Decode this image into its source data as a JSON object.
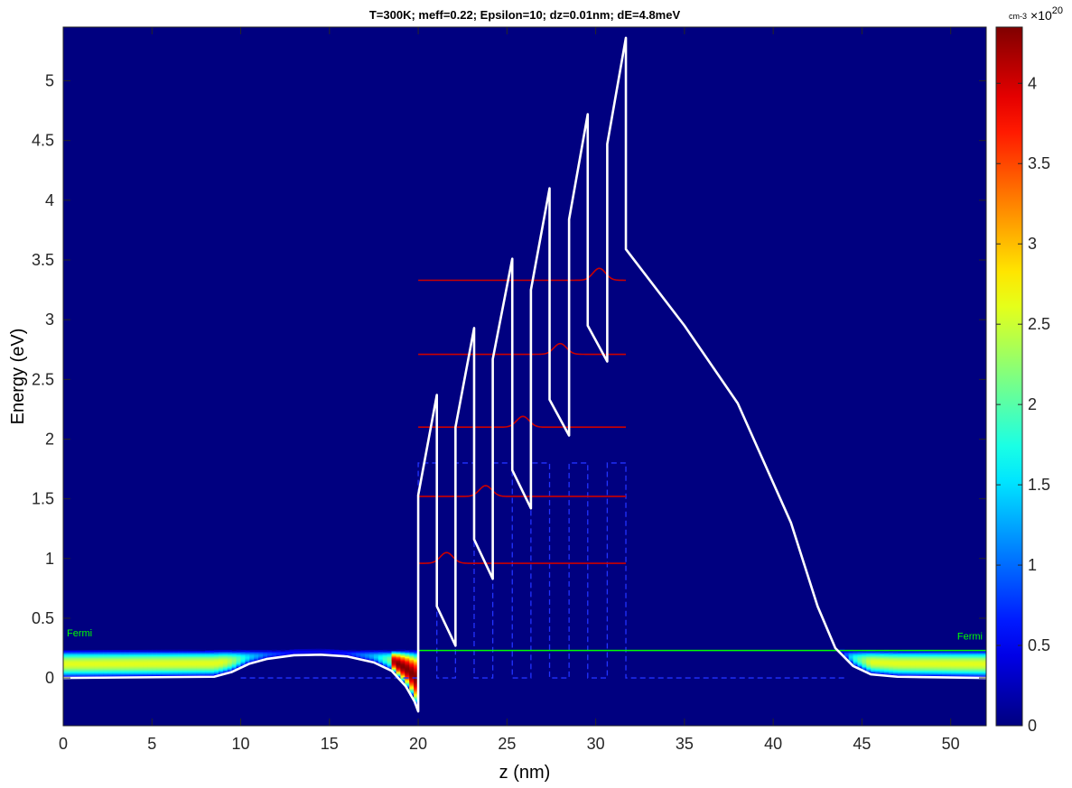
{
  "chart_data": {
    "type": "heatmap",
    "title": "T=300K; meff=0.22; Epsilon=10; dz=0.01nm; dE=4.8meV",
    "xlabel": "z (nm)",
    "ylabel": "Energy (eV)",
    "xlim": [
      0,
      52
    ],
    "ylim": [
      -0.4,
      5.45
    ],
    "xticks": [
      0,
      5,
      10,
      15,
      20,
      25,
      30,
      35,
      40,
      45,
      50
    ],
    "yticks": [
      0,
      0.5,
      1,
      1.5,
      2,
      2.5,
      3,
      3.5,
      4,
      4.5,
      5
    ],
    "colorbar": {
      "colormap": "jet",
      "limits": [
        0,
        4.35
      ],
      "ticks": [
        0,
        0.5,
        1,
        1.5,
        2,
        2.5,
        3,
        3.5,
        4
      ],
      "unit": "cm-3",
      "multiplier_base": "10",
      "multiplier_exponent": "20"
    },
    "fermi": {
      "label": "Fermi",
      "energy": 0.23,
      "color": "#00ff00"
    },
    "band_profile": {
      "name": "conduction band",
      "color": "#ffffff",
      "points": [
        [
          0,
          0
        ],
        [
          8.5,
          0.01
        ],
        [
          9.5,
          0.05
        ],
        [
          10.5,
          0.12
        ],
        [
          11.5,
          0.16
        ],
        [
          13,
          0.19
        ],
        [
          14.5,
          0.195
        ],
        [
          16,
          0.18
        ],
        [
          17.5,
          0.13
        ],
        [
          18.5,
          0.06
        ],
        [
          19.3,
          -0.07
        ],
        [
          19.8,
          -0.2
        ],
        [
          20,
          -0.28
        ],
        [
          20,
          1.53
        ],
        [
          21.05,
          2.37
        ],
        [
          21.05,
          0.6
        ],
        [
          22.1,
          0.27
        ],
        [
          22.1,
          2.1
        ],
        [
          23.15,
          2.93
        ],
        [
          23.15,
          1.16
        ],
        [
          24.2,
          0.83
        ],
        [
          24.2,
          2.67
        ],
        [
          25.3,
          3.51
        ],
        [
          25.3,
          1.74
        ],
        [
          26.35,
          1.42
        ],
        [
          26.35,
          3.25
        ],
        [
          27.4,
          4.1
        ],
        [
          27.4,
          2.33
        ],
        [
          28.5,
          2.03
        ],
        [
          28.5,
          3.84
        ],
        [
          29.55,
          4.72
        ],
        [
          29.55,
          2.95
        ],
        [
          30.65,
          2.65
        ],
        [
          30.65,
          4.47
        ],
        [
          31.7,
          5.36
        ],
        [
          31.7,
          3.59
        ],
        [
          35,
          2.95
        ],
        [
          38,
          2.3
        ],
        [
          41,
          1.3
        ],
        [
          42.5,
          0.6
        ],
        [
          43.5,
          0.25
        ],
        [
          44.5,
          0.1
        ],
        [
          45.5,
          0.03
        ],
        [
          47,
          0.01
        ],
        [
          52,
          0
        ]
      ]
    },
    "nominal_band": {
      "name": "flat-band profile",
      "color": "#2233ff",
      "segments_x": [
        [
          20,
          21.05
        ],
        [
          22.1,
          23.15
        ],
        [
          24.2,
          25.3
        ],
        [
          26.35,
          27.4
        ],
        [
          28.5,
          29.55
        ],
        [
          30.65,
          31.7
        ]
      ],
      "barrier_height": 1.8
    },
    "subbands": {
      "color": "#cc0000",
      "x_start": 20,
      "x_end": 31.7,
      "levels": [
        {
          "energy": 0.96,
          "peak_z": 21.6,
          "amplitude": 0.09
        },
        {
          "energy": 1.52,
          "peak_z": 23.8,
          "amplitude": 0.09
        },
        {
          "energy": 2.1,
          "peak_z": 25.9,
          "amplitude": 0.09
        },
        {
          "energy": 2.71,
          "peak_z": 28.0,
          "amplitude": 0.09
        },
        {
          "energy": 3.33,
          "peak_z": 30.2,
          "amplitude": 0.1
        }
      ]
    },
    "density_regions": [
      {
        "name": "left contact",
        "z_range": [
          0,
          20
        ],
        "peak": 2.6
      },
      {
        "name": "accumulation at interface",
        "z_range": [
          18.5,
          20
        ],
        "peak": 4.35
      },
      {
        "name": "right contact",
        "z_range": [
          43.5,
          52
        ],
        "peak": 2.6
      }
    ],
    "legend": "none"
  }
}
